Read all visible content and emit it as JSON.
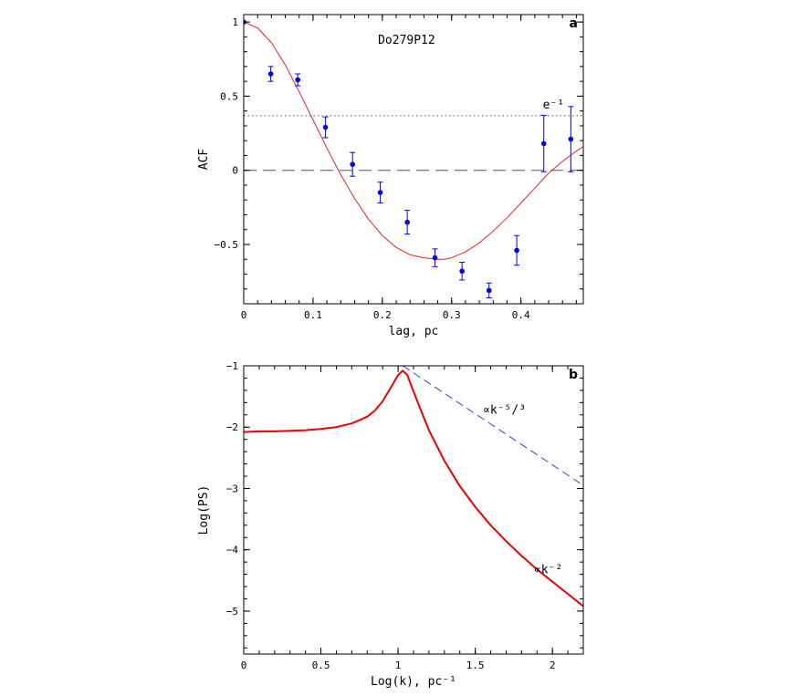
{
  "chart_data": [
    {
      "panel": "a",
      "type": "scatter",
      "title": "Do279P12",
      "xlabel": "lag, pc",
      "ylabel": "ACF",
      "xlim": [
        0,
        0.49
      ],
      "ylim": [
        -0.9,
        1.05
      ],
      "xticks": [
        0,
        0.1,
        0.2,
        0.3,
        0.4
      ],
      "xtick_labels": [
        "0",
        "0.1",
        "0.2",
        "0.3",
        "0.4"
      ],
      "yticks": [
        -0.5,
        0,
        0.5,
        1
      ],
      "ytick_labels": [
        "−0.5",
        "0",
        "0.5",
        "1"
      ],
      "points": {
        "x": [
          0,
          0.039,
          0.078,
          0.118,
          0.157,
          0.197,
          0.236,
          0.276,
          0.315,
          0.354,
          0.394,
          0.433,
          0.472
        ],
        "y": [
          1.0,
          0.65,
          0.61,
          0.29,
          0.04,
          -0.15,
          -0.35,
          -0.59,
          -0.68,
          -0.81,
          -0.54,
          0.18,
          0.21
        ],
        "err": [
          0,
          0.05,
          0.04,
          0.07,
          0.08,
          0.07,
          0.08,
          0.06,
          0.06,
          0.05,
          0.1,
          0.19,
          0.22
        ]
      },
      "fit_curve": {
        "x": [
          0,
          0.02,
          0.04,
          0.06,
          0.08,
          0.1,
          0.12,
          0.14,
          0.16,
          0.18,
          0.2,
          0.22,
          0.24,
          0.26,
          0.28,
          0.29,
          0.3,
          0.32,
          0.34,
          0.36,
          0.38,
          0.4,
          0.42,
          0.44,
          0.46,
          0.48,
          0.49
        ],
        "y": [
          1.0,
          0.96,
          0.86,
          0.71,
          0.53,
          0.34,
          0.15,
          -0.03,
          -0.19,
          -0.33,
          -0.44,
          -0.52,
          -0.57,
          -0.59,
          -0.6,
          -0.6,
          -0.59,
          -0.55,
          -0.49,
          -0.41,
          -0.32,
          -0.22,
          -0.12,
          -0.02,
          0.06,
          0.13,
          0.16
        ]
      },
      "reference_lines": [
        {
          "y": 0.368,
          "style": "dotted",
          "label": "e⁻¹"
        },
        {
          "y": 0,
          "style": "dashed"
        }
      ],
      "colors": {
        "points": "#0000ee",
        "fit": "#ee2222",
        "reference": "#555555"
      }
    },
    {
      "panel": "b",
      "type": "line",
      "xlabel": "Log(k), pc⁻¹",
      "ylabel": "Log(PS)",
      "xlim": [
        0,
        2.2
      ],
      "ylim": [
        -5.7,
        -1
      ],
      "xticks": [
        0,
        0.5,
        1,
        1.5,
        2
      ],
      "xtick_labels": [
        "0",
        "0.5",
        "1",
        "1.5",
        "2"
      ],
      "yticks": [
        -5,
        -4,
        -3,
        -2,
        -1
      ],
      "ytick_labels": [
        "−5",
        "−4",
        "−3",
        "−2",
        "−1"
      ],
      "series": [
        {
          "style": "solid",
          "color": "#ee0000",
          "x": [
            0,
            0.1,
            0.2,
            0.3,
            0.4,
            0.5,
            0.6,
            0.7,
            0.8,
            0.85,
            0.9,
            0.95,
            1.0,
            1.03,
            1.06,
            1.1,
            1.15,
            1.2,
            1.3,
            1.4,
            1.5,
            1.6,
            1.7,
            1.8,
            1.9,
            2.0,
            2.1,
            2.2
          ],
          "y": [
            -2.08,
            -2.07,
            -2.07,
            -2.06,
            -2.05,
            -2.03,
            -2.0,
            -1.94,
            -1.83,
            -1.73,
            -1.58,
            -1.37,
            -1.15,
            -1.08,
            -1.15,
            -1.42,
            -1.74,
            -2.05,
            -2.55,
            -2.96,
            -3.3,
            -3.6,
            -3.86,
            -4.1,
            -4.32,
            -4.52,
            -4.72,
            -4.92
          ],
          "label": "∝k⁻²"
        },
        {
          "style": "dashed",
          "color": "#3344dd",
          "x": [
            1.03,
            2.2
          ],
          "y": [
            -1.0,
            -2.95
          ],
          "label": "∝k⁻⁵/³"
        }
      ]
    }
  ]
}
